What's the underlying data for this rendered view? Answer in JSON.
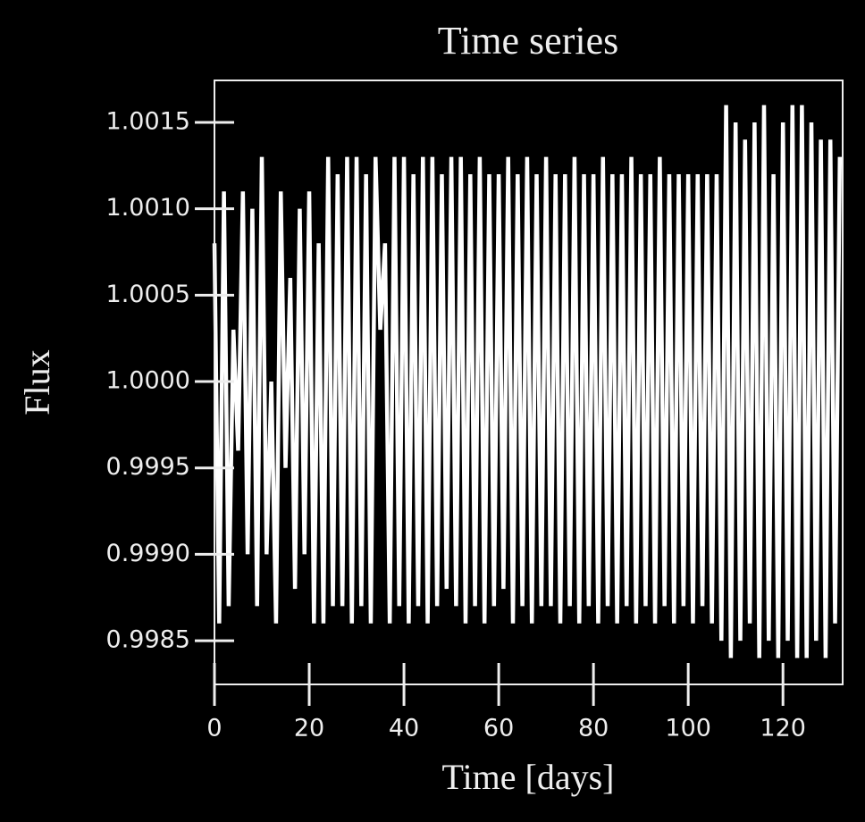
{
  "chart_data": {
    "type": "line",
    "title": "Time series",
    "xlabel": "Time [days]",
    "ylabel": "Flux",
    "color": "#ffffff",
    "x": [
      0,
      1,
      2,
      3,
      4,
      5,
      6,
      7,
      8,
      9,
      10,
      11,
      12,
      13,
      14,
      15,
      16,
      17,
      18,
      19,
      20,
      21,
      22,
      23,
      24,
      25,
      26,
      27,
      28,
      29,
      30,
      31,
      32,
      33,
      34,
      35,
      36,
      37,
      38,
      39,
      40,
      41,
      42,
      43,
      44,
      45,
      46,
      47,
      48,
      49,
      50,
      51,
      52,
      53,
      54,
      55,
      56,
      57,
      58,
      59,
      60,
      61,
      62,
      63,
      64,
      65,
      66,
      67,
      68,
      69,
      70,
      71,
      72,
      73,
      74,
      75,
      76,
      77,
      78,
      79,
      80,
      81,
      82,
      83,
      84,
      85,
      86,
      87,
      88,
      89,
      90,
      91,
      92,
      93,
      94,
      95,
      96,
      97,
      98,
      99,
      100,
      101,
      102,
      103,
      104,
      105,
      106,
      107,
      108,
      109,
      110,
      111,
      112,
      113,
      114,
      115,
      116,
      117,
      118,
      119,
      120,
      121,
      122,
      123,
      124,
      125,
      126,
      127,
      128,
      129,
      130,
      131,
      132
    ],
    "values": [
      1.0008,
      0.9986,
      1.0011,
      0.9987,
      1.0003,
      0.9996,
      1.0011,
      0.999,
      1.001,
      0.9987,
      1.0013,
      0.999,
      1.0,
      0.9986,
      1.0011,
      0.9995,
      1.0006,
      0.9988,
      1.001,
      0.999,
      1.0011,
      0.9986,
      1.0008,
      0.9986,
      1.0013,
      0.9987,
      1.0012,
      0.9987,
      1.0013,
      0.9986,
      1.0013,
      0.9987,
      1.0012,
      0.9986,
      1.0013,
      1.0003,
      1.0008,
      0.9986,
      1.0013,
      0.9987,
      1.0013,
      0.9986,
      1.0012,
      0.9987,
      1.0013,
      0.9986,
      1.0013,
      0.9987,
      1.0012,
      0.9988,
      1.0013,
      0.9987,
      1.0013,
      0.9986,
      1.0012,
      0.9987,
      1.0013,
      0.9986,
      1.0012,
      0.9987,
      1.0012,
      0.9988,
      1.0013,
      0.9986,
      1.0012,
      0.9987,
      1.0013,
      0.9986,
      1.0012,
      0.9987,
      1.0013,
      0.9987,
      1.0012,
      0.9986,
      1.0012,
      0.9987,
      1.0013,
      0.9986,
      1.0012,
      0.9987,
      1.0012,
      0.9986,
      1.0013,
      0.9987,
      1.0012,
      0.9986,
      1.0012,
      0.9987,
      1.0013,
      0.9986,
      1.0012,
      0.9987,
      1.0012,
      0.9986,
      1.0013,
      0.9987,
      1.0012,
      0.9986,
      1.0012,
      0.9987,
      1.0012,
      0.9986,
      1.0012,
      0.9987,
      1.0012,
      0.9986,
      1.0012,
      0.9985,
      1.0016,
      0.9984,
      1.0015,
      0.9985,
      1.0014,
      0.9986,
      1.0015,
      0.9984,
      1.0016,
      0.9985,
      1.0012,
      0.9984,
      1.0015,
      0.9985,
      1.0016,
      0.9984,
      1.0016,
      0.9984,
      1.0015,
      0.9985,
      1.0014,
      0.9984,
      1.0014,
      0.9986,
      1.0013
    ],
    "xlim": [
      0,
      132.6
    ],
    "ylim": [
      0.998247,
      1.001743
    ],
    "xticks": [
      0,
      20,
      40,
      60,
      80,
      100,
      120
    ],
    "yticks": [
      1.0015,
      {
        "value": 1.001,
        "label": "1.0010"
      },
      1.0005,
      {
        "value": 1,
        "label": "1.0000"
      },
      0.9995,
      {
        "value": 0.999,
        "label": "0.9990"
      },
      0.9985
    ]
  }
}
